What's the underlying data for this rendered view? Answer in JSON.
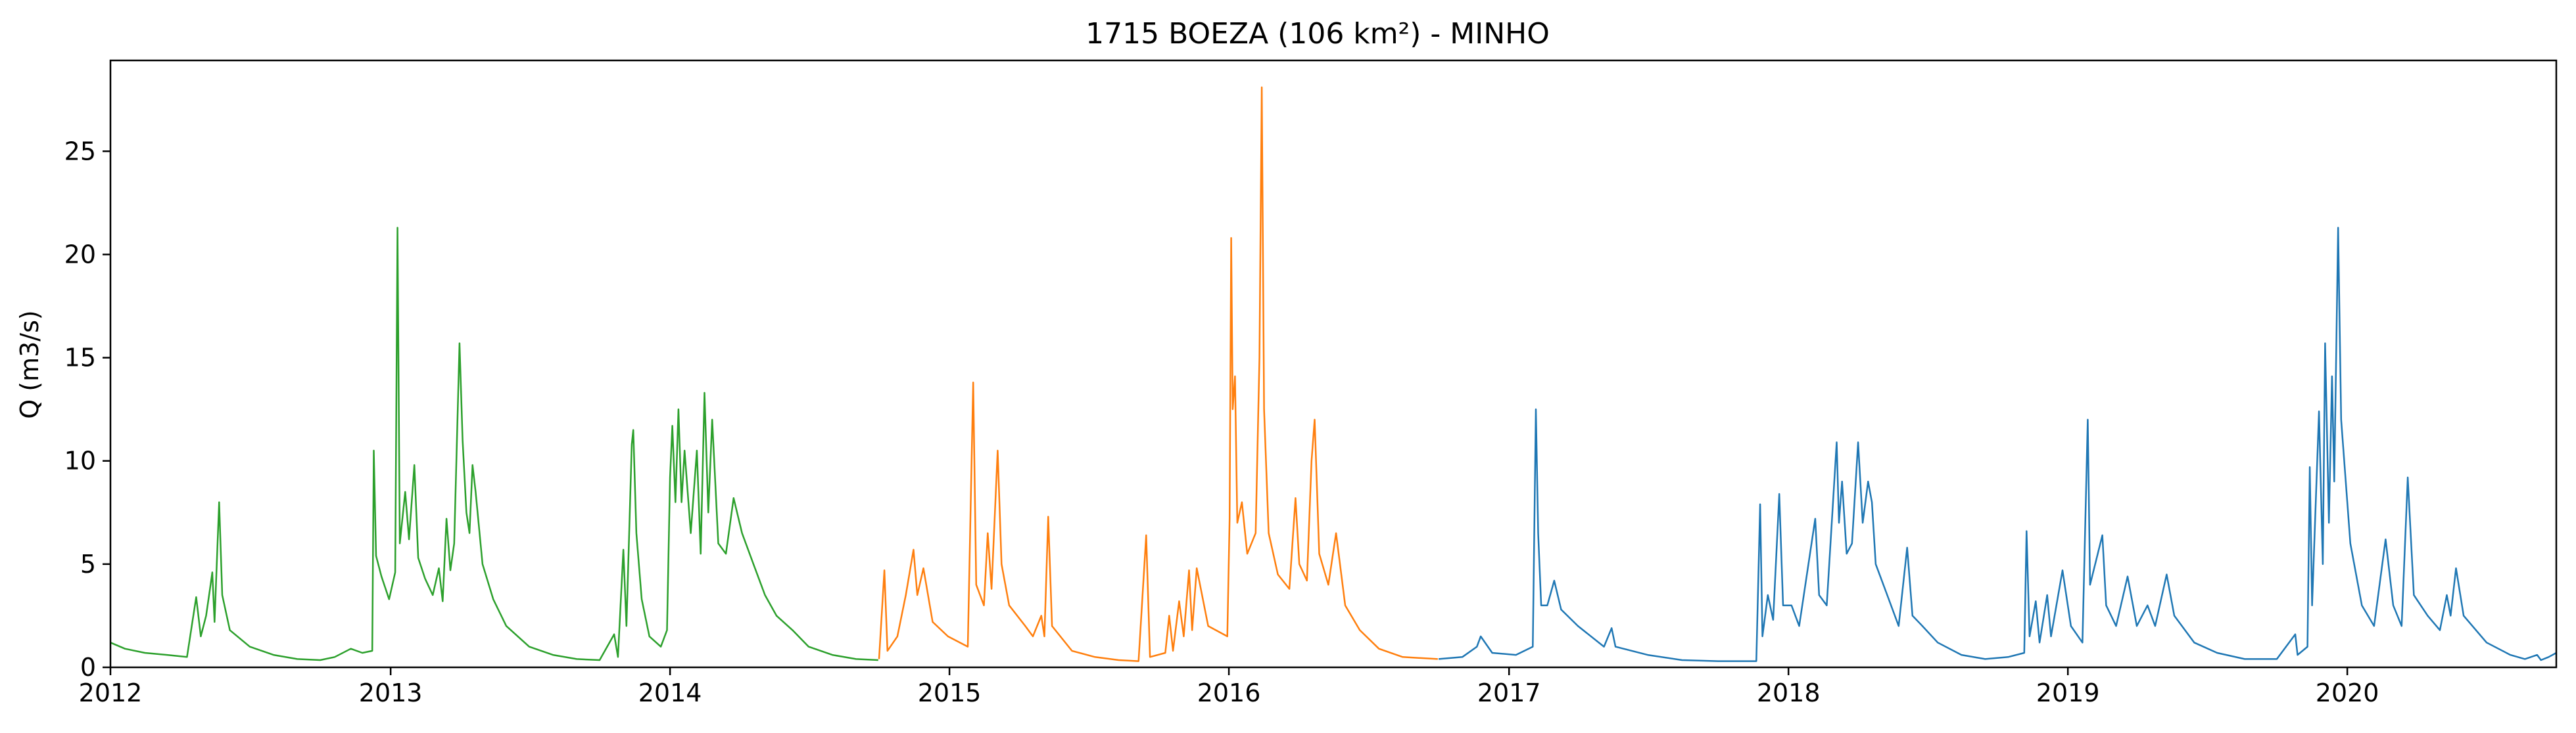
{
  "chart_data": {
    "type": "line",
    "title": "1715 BOEZA (106 km²) - MINHO",
    "xlabel": "",
    "ylabel": "Q (m3/s)",
    "xlim": [
      "2012-01-01",
      "2020-09-30"
    ],
    "ylim": [
      0,
      29.4
    ],
    "x_ticks": [
      "2012",
      "2013",
      "2014",
      "2015",
      "2016",
      "2017",
      "2018",
      "2019",
      "2020"
    ],
    "y_ticks": [
      "0",
      "5",
      "10",
      "15",
      "20",
      "25"
    ],
    "grid": false,
    "legend": "none",
    "series": [
      {
        "color": "#2ca02c",
        "points": [
          [
            "2012-01-01",
            1.2
          ],
          [
            "2012-01-20",
            0.9
          ],
          [
            "2012-02-15",
            0.7
          ],
          [
            "2012-03-15",
            0.6
          ],
          [
            "2012-04-10",
            0.5
          ],
          [
            "2012-04-22",
            3.4
          ],
          [
            "2012-04-28",
            1.5
          ],
          [
            "2012-05-05",
            2.5
          ],
          [
            "2012-05-10",
            3.8
          ],
          [
            "2012-05-13",
            4.6
          ],
          [
            "2012-05-16",
            2.2
          ],
          [
            "2012-05-22",
            8.0
          ],
          [
            "2012-05-26",
            3.5
          ],
          [
            "2012-06-05",
            1.8
          ],
          [
            "2012-07-01",
            1.0
          ],
          [
            "2012-08-01",
            0.6
          ],
          [
            "2012-09-01",
            0.4
          ],
          [
            "2012-10-01",
            0.35
          ],
          [
            "2012-10-20",
            0.5
          ],
          [
            "2012-11-10",
            0.9
          ],
          [
            "2012-11-25",
            0.7
          ],
          [
            "2012-12-08",
            0.8
          ],
          [
            "2012-12-10",
            10.5
          ],
          [
            "2012-12-13",
            5.4
          ],
          [
            "2012-12-20",
            4.4
          ],
          [
            "2012-12-30",
            3.3
          ],
          [
            "2013-01-07",
            4.6
          ],
          [
            "2013-01-10",
            21.3
          ],
          [
            "2013-01-13",
            6.0
          ],
          [
            "2013-01-20",
            8.5
          ],
          [
            "2013-01-25",
            6.2
          ],
          [
            "2013-02-01",
            9.8
          ],
          [
            "2013-02-06",
            5.3
          ],
          [
            "2013-02-15",
            4.3
          ],
          [
            "2013-02-25",
            3.5
          ],
          [
            "2013-03-05",
            4.8
          ],
          [
            "2013-03-10",
            3.2
          ],
          [
            "2013-03-15",
            7.2
          ],
          [
            "2013-03-20",
            4.7
          ],
          [
            "2013-03-25",
            6.0
          ],
          [
            "2013-04-01",
            15.7
          ],
          [
            "2013-04-05",
            11.0
          ],
          [
            "2013-04-10",
            7.5
          ],
          [
            "2013-04-14",
            6.5
          ],
          [
            "2013-04-18",
            9.8
          ],
          [
            "2013-04-22",
            8.5
          ],
          [
            "2013-05-01",
            5.0
          ],
          [
            "2013-05-15",
            3.3
          ],
          [
            "2013-06-01",
            2.0
          ],
          [
            "2013-07-01",
            1.0
          ],
          [
            "2013-08-01",
            0.6
          ],
          [
            "2013-09-01",
            0.4
          ],
          [
            "2013-10-01",
            0.35
          ],
          [
            "2013-10-20",
            1.6
          ],
          [
            "2013-10-25",
            0.5
          ],
          [
            "2013-11-01",
            5.7
          ],
          [
            "2013-11-05",
            2.0
          ],
          [
            "2013-11-12",
            10.8
          ],
          [
            "2013-11-14",
            11.5
          ],
          [
            "2013-11-18",
            6.5
          ],
          [
            "2013-11-25",
            3.3
          ],
          [
            "2013-12-05",
            1.5
          ],
          [
            "2013-12-20",
            1.0
          ],
          [
            "2013-12-28",
            1.8
          ],
          [
            "2014-01-01",
            9.2
          ],
          [
            "2014-01-04",
            11.7
          ],
          [
            "2014-01-08",
            8.0
          ],
          [
            "2014-01-12",
            12.5
          ],
          [
            "2014-01-16",
            8.0
          ],
          [
            "2014-01-20",
            10.5
          ],
          [
            "2014-01-28",
            6.5
          ],
          [
            "2014-02-05",
            10.5
          ],
          [
            "2014-02-10",
            5.5
          ],
          [
            "2014-02-15",
            13.3
          ],
          [
            "2014-02-20",
            7.5
          ],
          [
            "2014-02-25",
            12.0
          ],
          [
            "2014-03-05",
            6.0
          ],
          [
            "2014-03-15",
            5.5
          ],
          [
            "2014-03-25",
            8.2
          ],
          [
            "2014-04-05",
            6.5
          ],
          [
            "2014-04-20",
            5.0
          ],
          [
            "2014-05-05",
            3.5
          ],
          [
            "2014-05-20",
            2.5
          ],
          [
            "2014-06-10",
            1.8
          ],
          [
            "2014-07-01",
            1.0
          ],
          [
            "2014-08-01",
            0.6
          ],
          [
            "2014-09-01",
            0.4
          ],
          [
            "2014-09-30",
            0.35
          ]
        ]
      },
      {
        "color": "#ff7f0e",
        "points": [
          [
            "2014-10-01",
            0.4
          ],
          [
            "2014-10-08",
            4.7
          ],
          [
            "2014-10-12",
            0.8
          ],
          [
            "2014-10-25",
            1.5
          ],
          [
            "2014-11-05",
            3.5
          ],
          [
            "2014-11-15",
            5.7
          ],
          [
            "2014-11-20",
            3.5
          ],
          [
            "2014-11-28",
            4.8
          ],
          [
            "2014-12-10",
            2.2
          ],
          [
            "2014-12-30",
            1.5
          ],
          [
            "2015-01-25",
            1.0
          ],
          [
            "2015-02-01",
            13.8
          ],
          [
            "2015-02-05",
            4.0
          ],
          [
            "2015-02-15",
            3.0
          ],
          [
            "2015-02-20",
            6.5
          ],
          [
            "2015-02-25",
            3.8
          ],
          [
            "2015-03-05",
            10.5
          ],
          [
            "2015-03-10",
            5.0
          ],
          [
            "2015-03-20",
            3.0
          ],
          [
            "2015-04-10",
            2.0
          ],
          [
            "2015-04-20",
            1.5
          ],
          [
            "2015-05-01",
            2.5
          ],
          [
            "2015-05-05",
            1.5
          ],
          [
            "2015-05-10",
            7.3
          ],
          [
            "2015-05-15",
            2.0
          ],
          [
            "2015-06-10",
            0.8
          ],
          [
            "2015-07-10",
            0.5
          ],
          [
            "2015-08-10",
            0.35
          ],
          [
            "2015-09-05",
            0.3
          ],
          [
            "2015-09-15",
            6.4
          ],
          [
            "2015-09-20",
            0.5
          ],
          [
            "2015-10-10",
            0.7
          ],
          [
            "2015-10-15",
            2.5
          ],
          [
            "2015-10-20",
            0.8
          ],
          [
            "2015-10-28",
            3.2
          ],
          [
            "2015-11-03",
            1.5
          ],
          [
            "2015-11-10",
            4.7
          ],
          [
            "2015-11-14",
            1.8
          ],
          [
            "2015-11-20",
            4.8
          ],
          [
            "2015-12-05",
            2.0
          ],
          [
            "2015-12-30",
            1.5
          ],
          [
            "2016-01-02",
            7.2
          ],
          [
            "2016-01-04",
            20.8
          ],
          [
            "2016-01-06",
            12.5
          ],
          [
            "2016-01-09",
            14.1
          ],
          [
            "2016-01-12",
            7.0
          ],
          [
            "2016-01-18",
            8.0
          ],
          [
            "2016-01-25",
            5.5
          ],
          [
            "2016-02-05",
            6.5
          ],
          [
            "2016-02-10",
            15.0
          ],
          [
            "2016-02-13",
            28.1
          ],
          [
            "2016-02-16",
            12.5
          ],
          [
            "2016-02-22",
            6.5
          ],
          [
            "2016-03-05",
            4.5
          ],
          [
            "2016-03-20",
            3.8
          ],
          [
            "2016-03-28",
            8.2
          ],
          [
            "2016-04-02",
            5.0
          ],
          [
            "2016-04-12",
            4.2
          ],
          [
            "2016-04-18",
            10.0
          ],
          [
            "2016-04-22",
            12.0
          ],
          [
            "2016-04-28",
            5.5
          ],
          [
            "2016-05-10",
            4.0
          ],
          [
            "2016-05-20",
            6.5
          ],
          [
            "2016-06-01",
            3.0
          ],
          [
            "2016-06-20",
            1.8
          ],
          [
            "2016-07-15",
            0.9
          ],
          [
            "2016-08-15",
            0.5
          ],
          [
            "2016-09-30",
            0.4
          ]
        ]
      },
      {
        "color": "#1f77b4",
        "points": [
          [
            "2016-10-01",
            0.4
          ],
          [
            "2016-11-01",
            0.5
          ],
          [
            "2016-11-20",
            1.0
          ],
          [
            "2016-11-25",
            1.5
          ],
          [
            "2016-12-10",
            0.7
          ],
          [
            "2017-01-10",
            0.6
          ],
          [
            "2017-02-01",
            1.0
          ],
          [
            "2017-02-05",
            12.5
          ],
          [
            "2017-02-08",
            6.5
          ],
          [
            "2017-02-12",
            3.0
          ],
          [
            "2017-02-20",
            3.0
          ],
          [
            "2017-03-01",
            4.2
          ],
          [
            "2017-03-10",
            2.8
          ],
          [
            "2017-04-01",
            2.0
          ],
          [
            "2017-05-05",
            1.0
          ],
          [
            "2017-05-15",
            1.9
          ],
          [
            "2017-05-20",
            1.0
          ],
          [
            "2017-07-01",
            0.6
          ],
          [
            "2017-08-15",
            0.35
          ],
          [
            "2017-10-01",
            0.3
          ],
          [
            "2017-11-20",
            0.3
          ],
          [
            "2017-11-25",
            7.9
          ],
          [
            "2017-11-28",
            1.5
          ],
          [
            "2017-12-05",
            3.5
          ],
          [
            "2017-12-12",
            2.3
          ],
          [
            "2017-12-20",
            8.4
          ],
          [
            "2017-12-25",
            3.0
          ],
          [
            "2018-01-05",
            3.0
          ],
          [
            "2018-01-15",
            2.0
          ],
          [
            "2018-02-05",
            7.2
          ],
          [
            "2018-02-10",
            3.5
          ],
          [
            "2018-02-20",
            3.0
          ],
          [
            "2018-03-05",
            10.9
          ],
          [
            "2018-03-08",
            7.0
          ],
          [
            "2018-03-12",
            9.0
          ],
          [
            "2018-03-18",
            5.5
          ],
          [
            "2018-03-25",
            6.0
          ],
          [
            "2018-04-02",
            10.9
          ],
          [
            "2018-04-08",
            7.0
          ],
          [
            "2018-04-15",
            9.0
          ],
          [
            "2018-04-20",
            8.0
          ],
          [
            "2018-04-25",
            5.0
          ],
          [
            "2018-05-10",
            3.5
          ],
          [
            "2018-05-25",
            2.0
          ],
          [
            "2018-06-05",
            5.8
          ],
          [
            "2018-06-12",
            2.5
          ],
          [
            "2018-06-25",
            2.0
          ],
          [
            "2018-07-15",
            1.2
          ],
          [
            "2018-08-15",
            0.6
          ],
          [
            "2018-09-15",
            0.4
          ],
          [
            "2018-10-15",
            0.5
          ],
          [
            "2018-11-05",
            0.7
          ],
          [
            "2018-11-08",
            6.6
          ],
          [
            "2018-11-12",
            1.5
          ],
          [
            "2018-11-20",
            3.2
          ],
          [
            "2018-11-25",
            1.2
          ],
          [
            "2018-12-05",
            3.5
          ],
          [
            "2018-12-10",
            1.5
          ],
          [
            "2018-12-25",
            4.7
          ],
          [
            "2019-01-05",
            2.0
          ],
          [
            "2019-01-20",
            1.2
          ],
          [
            "2019-01-27",
            12.0
          ],
          [
            "2019-01-30",
            4.0
          ],
          [
            "2019-02-15",
            6.4
          ],
          [
            "2019-02-20",
            3.0
          ],
          [
            "2019-03-05",
            2.0
          ],
          [
            "2019-03-20",
            4.4
          ],
          [
            "2019-04-01",
            2.0
          ],
          [
            "2019-04-15",
            3.0
          ],
          [
            "2019-04-25",
            2.0
          ],
          [
            "2019-05-10",
            4.5
          ],
          [
            "2019-05-20",
            2.5
          ],
          [
            "2019-06-15",
            1.2
          ],
          [
            "2019-07-15",
            0.7
          ],
          [
            "2019-08-20",
            0.4
          ],
          [
            "2019-10-01",
            0.4
          ],
          [
            "2019-10-25",
            1.6
          ],
          [
            "2019-10-28",
            0.6
          ],
          [
            "2019-11-10",
            1.0
          ],
          [
            "2019-11-13",
            9.7
          ],
          [
            "2019-11-16",
            3.0
          ],
          [
            "2019-11-25",
            12.4
          ],
          [
            "2019-11-30",
            5.0
          ],
          [
            "2019-12-03",
            15.7
          ],
          [
            "2019-12-08",
            7.0
          ],
          [
            "2019-12-12",
            14.1
          ],
          [
            "2019-12-15",
            9.0
          ],
          [
            "2019-12-20",
            21.3
          ],
          [
            "2019-12-24",
            12.0
          ],
          [
            "2020-01-05",
            6.0
          ],
          [
            "2020-01-20",
            3.0
          ],
          [
            "2020-02-05",
            2.0
          ],
          [
            "2020-02-20",
            6.2
          ],
          [
            "2020-03-01",
            3.0
          ],
          [
            "2020-03-12",
            2.0
          ],
          [
            "2020-03-20",
            9.2
          ],
          [
            "2020-03-28",
            3.5
          ],
          [
            "2020-04-15",
            2.5
          ],
          [
            "2020-05-01",
            1.8
          ],
          [
            "2020-05-10",
            3.5
          ],
          [
            "2020-05-15",
            2.5
          ],
          [
            "2020-05-22",
            4.8
          ],
          [
            "2020-06-01",
            2.5
          ],
          [
            "2020-07-01",
            1.2
          ],
          [
            "2020-08-01",
            0.6
          ],
          [
            "2020-08-20",
            0.4
          ],
          [
            "2020-09-05",
            0.6
          ],
          [
            "2020-09-10",
            0.35
          ],
          [
            "2020-09-20",
            0.5
          ],
          [
            "2020-09-30",
            0.7
          ]
        ]
      }
    ]
  }
}
